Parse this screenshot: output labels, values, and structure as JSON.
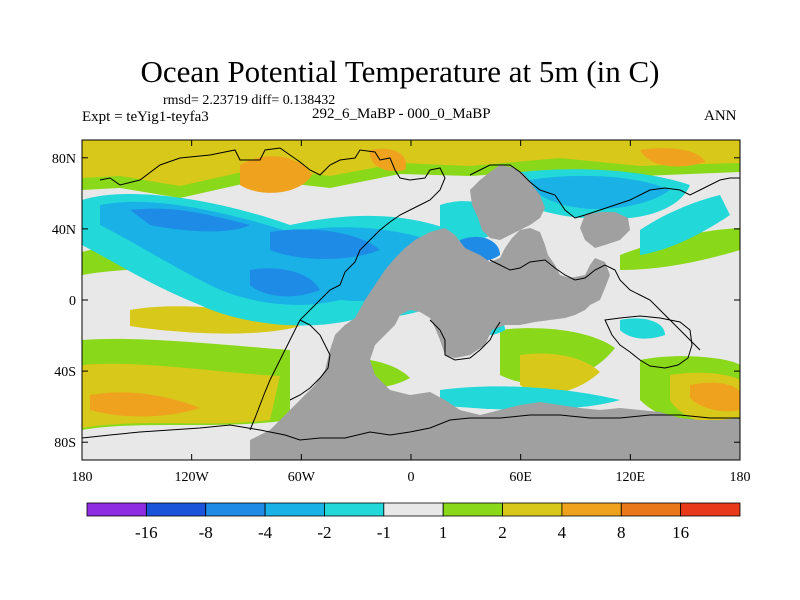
{
  "header": {
    "title": "Ocean Potential Temperature at 5m (in C)",
    "stats": "rmsd= 2.23719 diff= 0.138432",
    "experiment": "Expt = teYig1-teyfa3",
    "period": "292_6_MaBP - 000_0_MaBP",
    "season": "ANN"
  },
  "chart_data": {
    "type": "heatmap",
    "title": "Ocean Potential Temperature at 5m (in C)",
    "projection": "cylindrical equidistant",
    "xlim": [
      -180,
      180
    ],
    "ylim": [
      -90,
      90
    ],
    "x_ticks": [
      {
        "value": -180,
        "label": "180"
      },
      {
        "value": -120,
        "label": "120W"
      },
      {
        "value": -60,
        "label": "60W"
      },
      {
        "value": 0,
        "label": "0"
      },
      {
        "value": 60,
        "label": "60E"
      },
      {
        "value": 120,
        "label": "120E"
      },
      {
        "value": 180,
        "label": "180"
      }
    ],
    "y_ticks": [
      {
        "value": 80,
        "label": "80N"
      },
      {
        "value": 40,
        "label": "40N"
      },
      {
        "value": 0,
        "label": "0"
      },
      {
        "value": -40,
        "label": "40S"
      },
      {
        "value": -80,
        "label": "80S"
      }
    ],
    "colorbar": {
      "levels": [
        "-16",
        "-8",
        "-4",
        "-2",
        "-1",
        "1",
        "2",
        "4",
        "8",
        "16"
      ],
      "colors": [
        "#8e2de2",
        "#1a54d8",
        "#1e8be6",
        "#19b1e6",
        "#22d8d8",
        "#e8e8e8",
        "#8ad81a",
        "#d8c81a",
        "#eea21e",
        "#e8781a",
        "#e83a1a"
      ]
    },
    "land_color": "#a0a0a0",
    "no_change_color": "#e8e8e8"
  }
}
